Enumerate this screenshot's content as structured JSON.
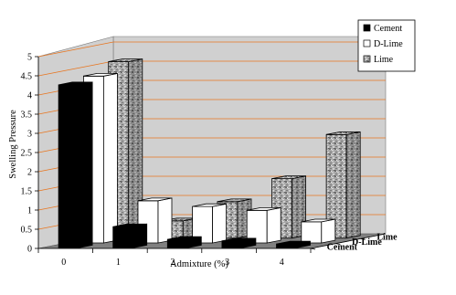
{
  "chart_data": {
    "type": "bar",
    "subtype": "3d-clustered-depth",
    "title": "",
    "xlabel": "Admixture (%)",
    "ylabel": "Swelling Pressure",
    "categories": [
      "0",
      "1",
      "2",
      "3",
      "4"
    ],
    "ylim": [
      0,
      5
    ],
    "yticks": [
      "0",
      "0.5",
      "1",
      "1.5",
      "2",
      "2.5",
      "3",
      "3.5",
      "4",
      "4.5",
      "5"
    ],
    "depth_labels": [
      "Cement",
      "D-Lime",
      "Lime"
    ],
    "series": [
      {
        "name": "Cement",
        "values": [
          4.25,
          0.55,
          0.22,
          0.18,
          0.1
        ],
        "color": "#000000"
      },
      {
        "name": "D-Lime",
        "values": [
          4.35,
          1.1,
          0.95,
          0.85,
          0.55
        ],
        "color": "#ffffff"
      },
      {
        "name": "Lime",
        "values": [
          4.6,
          0.45,
          0.95,
          1.55,
          2.7
        ],
        "color": "#9a9a9a"
      }
    ],
    "legend": {
      "position": "top-right",
      "entries": [
        "Cement",
        "D-Lime",
        "Lime"
      ]
    },
    "grid": true,
    "colors": {
      "back_wall": "#d0d0d0",
      "floor": "#808080",
      "gridline": "#e8751f"
    }
  }
}
